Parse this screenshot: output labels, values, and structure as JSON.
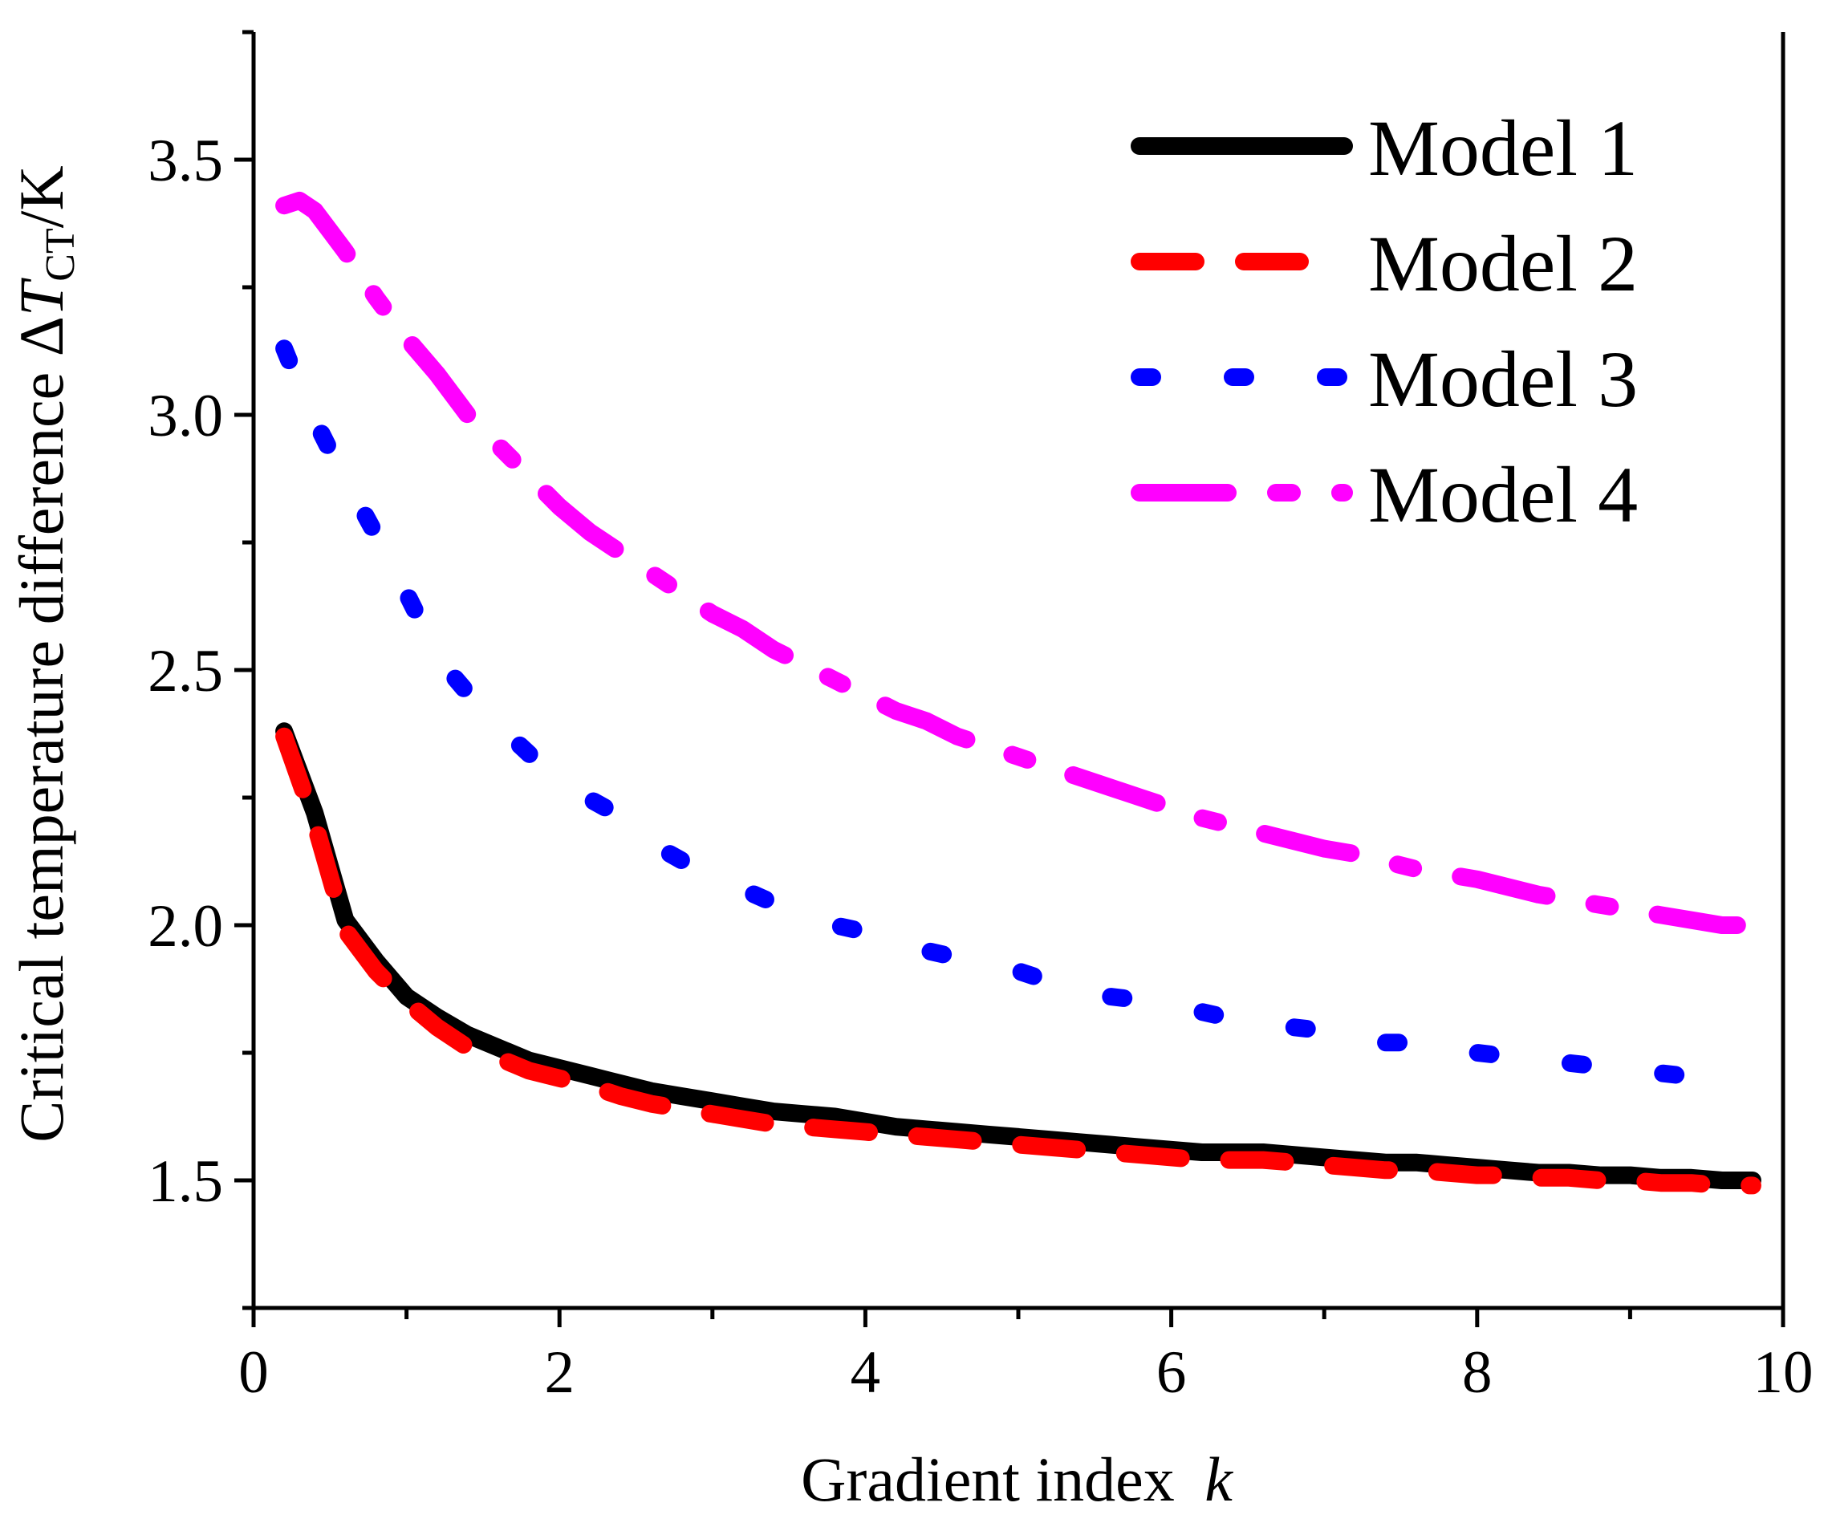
{
  "chart_data": {
    "type": "line",
    "title": "",
    "xlabel": "Gradient index",
    "xlabel_italic": "k",
    "ylabel_prefix": "Critical temperature difference Δ",
    "ylabel_T": "T",
    "ylabel_sub": "CT",
    "ylabel_suffix": "/K",
    "xlim": [
      0,
      10
    ],
    "ylim": [
      1.25,
      3.75
    ],
    "xticks": [
      0,
      2,
      4,
      6,
      8,
      10
    ],
    "xtick_labels": [
      "0",
      "2",
      "4",
      "6",
      "8",
      "10"
    ],
    "yticks": [
      1.5,
      2.0,
      2.5,
      3.0,
      3.5
    ],
    "ytick_labels": [
      "1.5",
      "2.0",
      "2.5",
      "3.0",
      "3.5"
    ],
    "legend_position": "top-right",
    "series": [
      {
        "name": "Model 1",
        "color": "#000000",
        "style": "solid",
        "x": [
          0.2,
          0.4,
          0.6,
          0.8,
          1.0,
          1.2,
          1.4,
          1.6,
          1.8,
          2.0,
          2.2,
          2.4,
          2.6,
          2.8,
          3.0,
          3.2,
          3.4,
          3.6,
          3.8,
          4.0,
          4.2,
          4.4,
          4.6,
          4.8,
          5.0,
          5.2,
          5.4,
          5.6,
          5.8,
          6.0,
          6.2,
          6.4,
          6.6,
          6.8,
          7.0,
          7.2,
          7.4,
          7.6,
          7.8,
          8.0,
          8.2,
          8.4,
          8.6,
          8.8,
          9.0,
          9.2,
          9.4,
          9.6,
          9.8
        ],
        "values": [
          2.38,
          2.22,
          2.01,
          1.93,
          1.86,
          1.82,
          1.785,
          1.76,
          1.735,
          1.72,
          1.705,
          1.69,
          1.675,
          1.665,
          1.655,
          1.645,
          1.635,
          1.63,
          1.625,
          1.615,
          1.605,
          1.6,
          1.595,
          1.59,
          1.585,
          1.58,
          1.575,
          1.57,
          1.565,
          1.56,
          1.555,
          1.555,
          1.555,
          1.55,
          1.545,
          1.54,
          1.535,
          1.535,
          1.53,
          1.525,
          1.52,
          1.515,
          1.515,
          1.51,
          1.51,
          1.505,
          1.505,
          1.5,
          1.5
        ]
      },
      {
        "name": "Model 2",
        "color": "#ff0000",
        "style": "dashed",
        "x": [
          0.2,
          0.4,
          0.6,
          0.8,
          1.0,
          1.2,
          1.4,
          1.6,
          1.8,
          2.0,
          2.2,
          2.4,
          2.6,
          2.8,
          3.0,
          3.2,
          3.4,
          3.6,
          3.8,
          4.0,
          4.2,
          4.4,
          4.6,
          4.8,
          5.0,
          5.2,
          5.4,
          5.6,
          5.8,
          6.0,
          6.2,
          6.4,
          6.6,
          6.8,
          7.0,
          7.2,
          7.4,
          7.6,
          7.8,
          8.0,
          8.2,
          8.4,
          8.6,
          8.8,
          9.0,
          9.2,
          9.4,
          9.6,
          9.8
        ],
        "values": [
          2.37,
          2.2,
          1.99,
          1.91,
          1.85,
          1.8,
          1.76,
          1.74,
          1.715,
          1.7,
          1.685,
          1.665,
          1.65,
          1.64,
          1.63,
          1.62,
          1.61,
          1.605,
          1.6,
          1.595,
          1.59,
          1.585,
          1.58,
          1.575,
          1.57,
          1.565,
          1.56,
          1.555,
          1.55,
          1.545,
          1.54,
          1.54,
          1.54,
          1.535,
          1.53,
          1.525,
          1.52,
          1.52,
          1.515,
          1.51,
          1.51,
          1.505,
          1.505,
          1.5,
          1.5,
          1.495,
          1.495,
          1.49,
          1.49
        ]
      },
      {
        "name": "Model 3",
        "color": "#0000ff",
        "style": "dotted",
        "x": [
          0.2,
          0.35,
          0.5,
          0.7,
          0.9,
          1.1,
          1.3,
          1.5,
          1.75,
          2.0,
          2.3,
          2.6,
          2.9,
          3.2,
          3.5,
          3.8,
          4.1,
          4.4,
          4.7,
          5.0,
          5.3,
          5.6,
          5.9,
          6.2,
          6.5,
          6.8,
          7.1,
          7.4,
          7.7,
          8.0,
          8.3,
          8.6,
          8.9,
          9.2,
          9.5,
          9.7
        ],
        "values": [
          3.13,
          3.02,
          2.93,
          2.82,
          2.71,
          2.59,
          2.49,
          2.42,
          2.35,
          2.28,
          2.23,
          2.16,
          2.11,
          2.07,
          2.03,
          2.0,
          1.98,
          1.95,
          1.93,
          1.91,
          1.88,
          1.86,
          1.85,
          1.83,
          1.81,
          1.8,
          1.79,
          1.77,
          1.77,
          1.75,
          1.74,
          1.73,
          1.72,
          1.71,
          1.7,
          1.7
        ]
      },
      {
        "name": "Model 4",
        "color": "#ff00ff",
        "style": "dashdot",
        "x": [
          0.2,
          0.3,
          0.4,
          0.5,
          0.6,
          0.8,
          1.0,
          1.2,
          1.4,
          1.6,
          1.8,
          2.0,
          2.2,
          2.4,
          2.6,
          2.8,
          3.0,
          3.2,
          3.4,
          3.6,
          3.8,
          4.0,
          4.2,
          4.4,
          4.6,
          4.8,
          5.0,
          5.2,
          5.4,
          5.6,
          5.8,
          6.0,
          6.2,
          6.4,
          6.6,
          6.8,
          7.0,
          7.2,
          7.4,
          7.6,
          7.8,
          8.0,
          8.2,
          8.4,
          8.6,
          8.8,
          9.0,
          9.2,
          9.4,
          9.6,
          9.7
        ],
        "values": [
          3.41,
          3.42,
          3.4,
          3.36,
          3.32,
          3.23,
          3.15,
          3.08,
          3.0,
          2.94,
          2.88,
          2.82,
          2.77,
          2.73,
          2.69,
          2.65,
          2.61,
          2.58,
          2.54,
          2.51,
          2.48,
          2.45,
          2.42,
          2.4,
          2.37,
          2.35,
          2.33,
          2.31,
          2.29,
          2.27,
          2.25,
          2.23,
          2.21,
          2.195,
          2.18,
          2.165,
          2.15,
          2.14,
          2.125,
          2.11,
          2.1,
          2.09,
          2.075,
          2.06,
          2.05,
          2.04,
          2.03,
          2.02,
          2.01,
          2.0,
          2.0
        ]
      }
    ]
  }
}
